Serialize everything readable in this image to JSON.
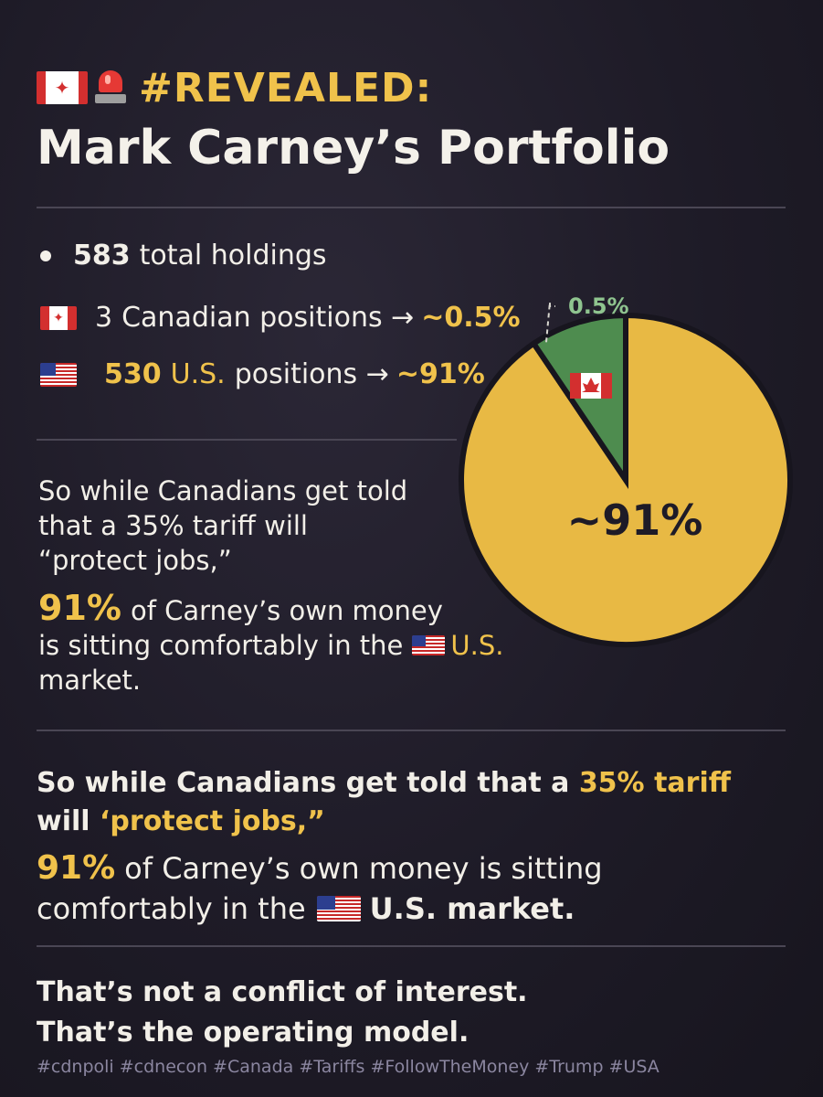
{
  "header": {
    "tag": "#REVEALED:",
    "title": "Mark Carney’s Portfolio",
    "ca_flag_icon": "canada-flag-icon",
    "siren_icon": "siren-icon"
  },
  "stats": {
    "total_num": "583",
    "total_label": "total holdings",
    "canadian_num": "3",
    "canadian_label": "Canadian positions →",
    "canadian_pct": "~0.5%",
    "us_num": "530",
    "us_label_yellow": "U.S.",
    "us_label": "positions →",
    "us_pct": "~91%"
  },
  "chart_data": {
    "type": "pie",
    "slices": [
      {
        "label": "0.5%",
        "value": 0.5,
        "color": "#4e8c4f",
        "icon": "canada-flag-icon"
      },
      {
        "label": "~91%",
        "value": 91,
        "color": "#e8b944"
      }
    ],
    "slice_label_small": "0.5%",
    "slice_label_big": "~91%"
  },
  "middle": {
    "line1": "So while Canadians get told",
    "line2": "that a 35% tariff will",
    "line3": "“protect jobs,”",
    "pct": "91%",
    "line4": "of Carney’s own money",
    "line5": "is sitting comfortably in the",
    "us": "U.S.",
    "line6": "market."
  },
  "lower": {
    "l1_a": "So while Canadians get told that a",
    "l1_b": "35% tariff",
    "l2_a": "will",
    "l2_b": "‘protect jobs,”",
    "pct": "91%",
    "l3": "of Carney’s own money is sitting",
    "l4_a": "comfortably in the",
    "l4_b": "U.S. market."
  },
  "closing": {
    "line1": "That’s not a conflict of interest.",
    "line2": "That’s the operating model."
  },
  "hashtags": "#cdnpoli #cdnecon #Canada #Tariffs #FollowTheMoney #Trump #USA"
}
